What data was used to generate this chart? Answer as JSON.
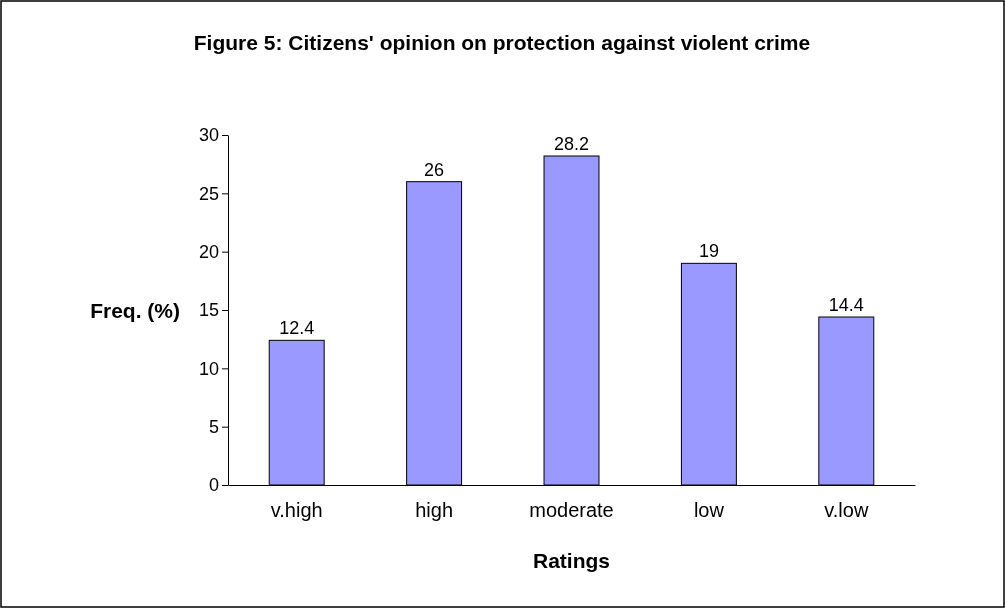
{
  "chart_data": {
    "type": "bar",
    "title": "Figure 5: Citizens' opinion on protection against violent crime",
    "xlabel": "Ratings",
    "ylabel": "Freq. (%)",
    "categories": [
      "v.high",
      "high",
      "moderate",
      "low",
      "v.low"
    ],
    "values": [
      12.4,
      26,
      28.2,
      19,
      14.4
    ],
    "color": "#9999ff",
    "ylim": [
      0,
      30
    ],
    "yticks": [
      0,
      5,
      10,
      15,
      20,
      25,
      30
    ],
    "grid": false,
    "data_labels": true
  }
}
